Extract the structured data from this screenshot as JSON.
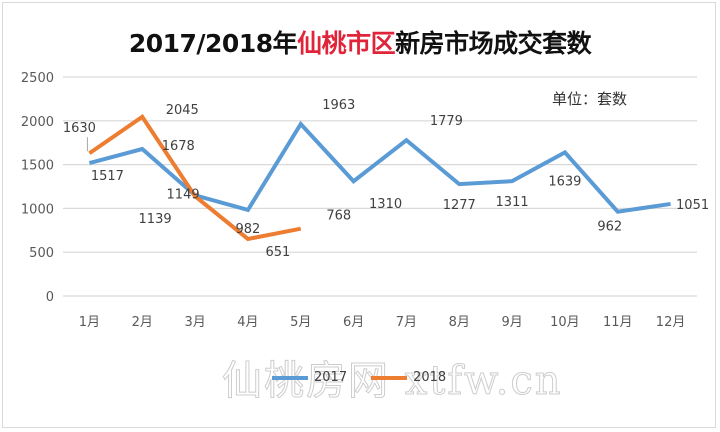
{
  "title": {
    "prefix": "2017/2018年",
    "highlight": "仙桃市区",
    "suffix": "新房市场成交套数"
  },
  "unit_label": "单位：套数",
  "watermark": "仙桃房网 xtfw.cn",
  "colors": {
    "series_2017": "#5b9bd5",
    "series_2018": "#ed7d31",
    "title_highlight": "#e0253a",
    "gridline": "#d9d9d9"
  },
  "legend": [
    {
      "name": "2017",
      "color": "#5b9bd5"
    },
    {
      "name": "2018",
      "color": "#ed7d31"
    }
  ],
  "chart_data": {
    "type": "line",
    "title": "2017/2018年仙桃市区新房市场成交套数",
    "subtitle": "单位：套数",
    "xlabel": "",
    "ylabel": "",
    "categories": [
      "1月",
      "2月",
      "3月",
      "4月",
      "5月",
      "6月",
      "7月",
      "8月",
      "9月",
      "10月",
      "11月",
      "12月"
    ],
    "series": [
      {
        "name": "2017",
        "values": [
          1517,
          1678,
          1149,
          982,
          1963,
          1310,
          1779,
          1277,
          1311,
          1639,
          962,
          1051
        ]
      },
      {
        "name": "2018",
        "values": [
          1630,
          2045,
          1139,
          651,
          768,
          null,
          null,
          null,
          null,
          null,
          null,
          null
        ]
      }
    ],
    "yticks": [
      0,
      500,
      1000,
      1500,
      2000,
      2500
    ],
    "ylim": [
      0,
      2500
    ],
    "grid": true,
    "legend_position": "bottom"
  }
}
